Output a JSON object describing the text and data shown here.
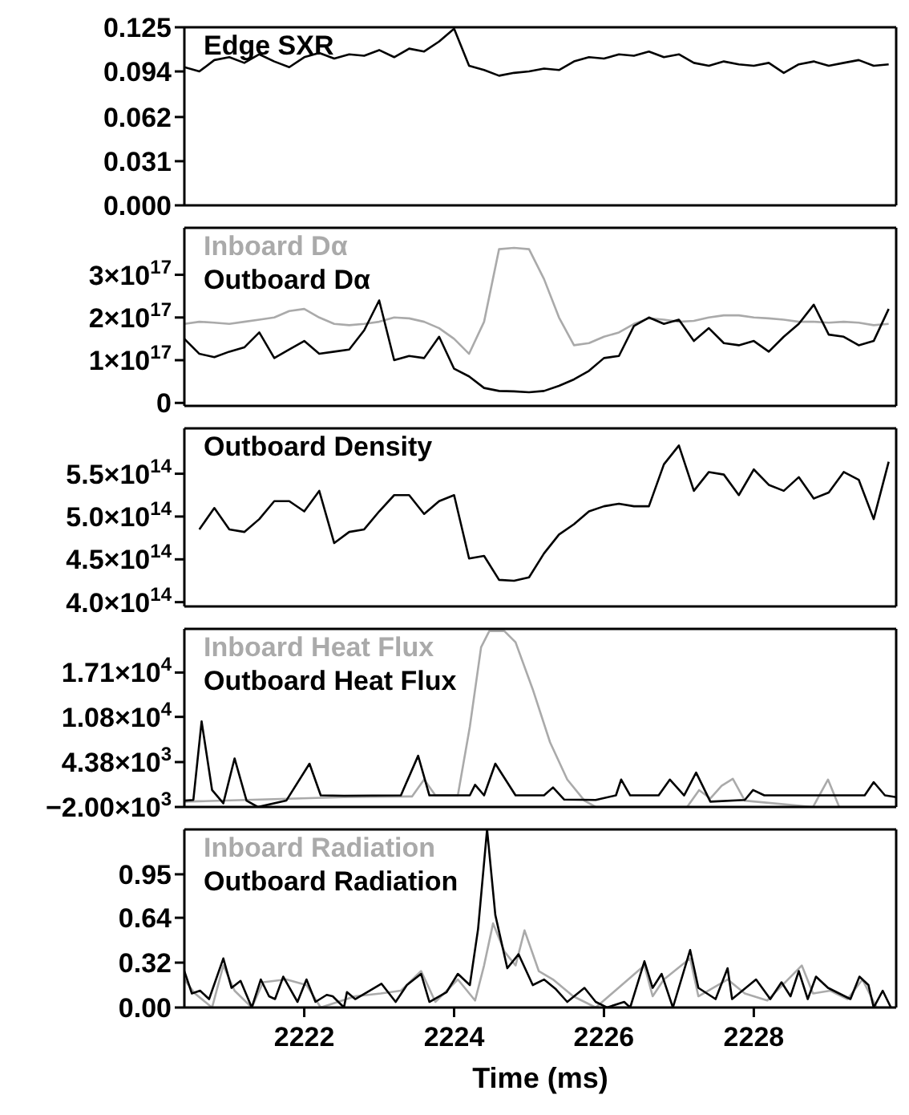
{
  "chart_data": [
    {
      "type": "line",
      "legend": "top left",
      "tick_labels": "y",
      "xlim": [
        2220.4,
        2229.9
      ],
      "xticks": [
        2222,
        2224,
        2226,
        2228
      ],
      "ylim": [
        0,
        0.125
      ],
      "yticks": [
        {
          "value": 0,
          "label": "0.000"
        },
        0.031,
        0.062,
        0.094,
        0.125
      ],
      "x": [
        2220.4,
        2220.6,
        2220.8,
        2221.0,
        2221.2,
        2221.4,
        2221.6,
        2221.8,
        2222.0,
        2222.2,
        2222.4,
        2222.6,
        2222.8,
        2223.0,
        2223.2,
        2223.4,
        2223.6,
        2223.8,
        2224.0,
        2224.2,
        2224.4,
        2224.6,
        2224.8,
        2225.0,
        2225.2,
        2225.4,
        2225.6,
        2225.8,
        2226.0,
        2226.2,
        2226.4,
        2226.6,
        2226.8,
        2227.0,
        2227.2,
        2227.4,
        2227.6,
        2227.8,
        2228.0,
        2228.2,
        2228.4,
        2228.6,
        2228.8,
        2229.0,
        2229.2,
        2229.4,
        2229.6,
        2229.8
      ],
      "series": [
        {
          "name": "Edge SXR",
          "color": "#000000",
          "values": [
            0.097,
            0.094,
            0.102,
            0.104,
            0.1,
            0.106,
            0.101,
            0.097,
            0.104,
            0.107,
            0.103,
            0.106,
            0.105,
            0.109,
            0.104,
            0.11,
            0.108,
            0.115,
            0.124,
            0.098,
            0.095,
            0.091,
            0.093,
            0.094,
            0.096,
            0.095,
            0.101,
            0.104,
            0.103,
            0.106,
            0.105,
            0.108,
            0.104,
            0.106,
            0.1,
            0.098,
            0.101,
            0.099,
            0.098,
            0.1,
            0.093,
            0.099,
            0.101,
            0.098,
            0.1,
            0.102,
            0.098,
            0.099
          ]
        }
      ]
    },
    {
      "type": "line",
      "legend": "top left",
      "tick_labels": "y",
      "xlim": [
        2220.4,
        2229.9
      ],
      "xticks": [
        2222,
        2224,
        2226,
        2228
      ],
      "ylim": [
        -7000000000000000.0,
        4.1e+17
      ],
      "yticks": [
        {
          "value": 0,
          "label": "0"
        },
        {
          "value": 1e+17,
          "label": "1×10$^{17}$"
        },
        {
          "value": 2e+17,
          "label": "2×10$^{17}$"
        },
        {
          "value": 3e+17,
          "label": "3×10$^{17}$"
        }
      ],
      "x": [
        2220.4,
        2220.6,
        2220.8,
        2221.0,
        2221.2,
        2221.4,
        2221.6,
        2221.8,
        2222.0,
        2222.2,
        2222.4,
        2222.6,
        2222.8,
        2223.0,
        2223.2,
        2223.4,
        2223.6,
        2223.8,
        2224.0,
        2224.2,
        2224.4,
        2224.6,
        2224.8,
        2225.0,
        2225.2,
        2225.4,
        2225.6,
        2225.8,
        2226.0,
        2226.2,
        2226.4,
        2226.6,
        2226.8,
        2227.0,
        2227.2,
        2227.4,
        2227.6,
        2227.8,
        2228.0,
        2228.2,
        2228.4,
        2228.6,
        2228.8,
        2229.0,
        2229.2,
        2229.4,
        2229.6,
        2229.8
      ],
      "series": [
        {
          "name": "Inboard Dα",
          "color": "#aaaaaa",
          "values": [
            1.85e+17,
            1.9e+17,
            1.88e+17,
            1.85e+17,
            1.9e+17,
            1.95e+17,
            2e+17,
            2.15e+17,
            2.2e+17,
            2e+17,
            1.85e+17,
            1.82e+17,
            1.85e+17,
            1.9e+17,
            2e+17,
            1.98e+17,
            1.9e+17,
            1.75e+17,
            1.5e+17,
            1.15e+17,
            1.9e+17,
            3.6e+17,
            3.63e+17,
            3.6e+17,
            2.9e+17,
            2e+17,
            1.35e+17,
            1.4e+17,
            1.55e+17,
            1.65e+17,
            1.85e+17,
            1.98e+17,
            1.95e+17,
            1.9e+17,
            1.92e+17,
            2e+17,
            2.05e+17,
            2.05e+17,
            2e+17,
            1.98e+17,
            1.95e+17,
            1.9e+17,
            1.9e+17,
            1.88e+17,
            1.9e+17,
            1.88e+17,
            1.82e+17,
            1.85e+17
          ]
        },
        {
          "name": "Outboard Dα",
          "color": "#000000",
          "values": [
            1.5e+17,
            1.15e+17,
            1.07e+17,
            1.2e+17,
            1.3e+17,
            1.65e+17,
            1.05e+17,
            1.25e+17,
            1.45e+17,
            1.15e+17,
            1.2e+17,
            1.25e+17,
            1.7e+17,
            2.4e+17,
            1e+17,
            1.1e+17,
            1.05e+17,
            1.55e+17,
            8e+16,
            6.2e+16,
            3.5e+16,
            2.8e+16,
            2.7e+16,
            2.5e+16,
            2.8e+16,
            4e+16,
            5.5e+16,
            7.5e+16,
            1.05e+17,
            1.1e+17,
            1.8e+17,
            2e+17,
            1.85e+17,
            1.95e+17,
            1.45e+17,
            1.75e+17,
            1.4e+17,
            1.35e+17,
            1.45e+17,
            1.2e+17,
            1.55e+17,
            1.85e+17,
            2.3e+17,
            1.6e+17,
            1.55e+17,
            1.35e+17,
            1.45e+17,
            2.2e+17
          ]
        }
      ]
    },
    {
      "type": "line",
      "legend": "top left",
      "tick_labels": "y",
      "xlim": [
        2220.4,
        2229.9
      ],
      "xticks": [
        2222,
        2224,
        2226,
        2228
      ],
      "ylim": [
        395000000000000.0,
        603000000000000.0
      ],
      "yticks": [
        {
          "value": 400000000000000.0,
          "label": "4.0×10$^{14}$"
        },
        {
          "value": 450000000000000.0,
          "label": "4.5×10$^{14}$"
        },
        {
          "value": 500000000000000.0,
          "label": "5.0×10$^{14}$"
        },
        {
          "value": 550000000000000.0,
          "label": "5.5×10$^{14}$"
        }
      ],
      "x": [
        2220.6,
        2220.8,
        2221.0,
        2221.2,
        2221.4,
        2221.6,
        2221.8,
        2222.0,
        2222.2,
        2222.4,
        2222.6,
        2222.8,
        2223.0,
        2223.2,
        2223.4,
        2223.6,
        2223.8,
        2224.0,
        2224.2,
        2224.4,
        2224.6,
        2224.8,
        2225.0,
        2225.2,
        2225.4,
        2225.6,
        2225.8,
        2226.0,
        2226.2,
        2226.4,
        2226.6,
        2226.8,
        2227.0,
        2227.2,
        2227.4,
        2227.6,
        2227.8,
        2228.0,
        2228.2,
        2228.4,
        2228.6,
        2228.8,
        2229.0,
        2229.2,
        2229.4,
        2229.6,
        2229.8
      ],
      "series": [
        {
          "name": "Outboard Density",
          "color": "#000000",
          "values": [
            485000000000000.0,
            510000000000000.0,
            485000000000000.0,
            482000000000000.0,
            497000000000000.0,
            518000000000000.0,
            518000000000000.0,
            506000000000000.0,
            530000000000000.0,
            469000000000000.0,
            482000000000000.0,
            485000000000000.0,
            506000000000000.0,
            525000000000000.0,
            525000000000000.0,
            503000000000000.0,
            518000000000000.0,
            525000000000000.0,
            451000000000000.0,
            454000000000000.0,
            426000000000000.0,
            425000000000000.0,
            429000000000000.0,
            457000000000000.0,
            479000000000000.0,
            491000000000000.0,
            506000000000000.0,
            512000000000000.0,
            515000000000000.0,
            512000000000000.0,
            512000000000000.0,
            561000000000000.0,
            583000000000000.0,
            530000000000000.0,
            552000000000000.0,
            549000000000000.0,
            525000000000000.0,
            555000000000000.0,
            537000000000000.0,
            530000000000000.0,
            546000000000000.0,
            521000000000000.0,
            528000000000000.0,
            552000000000000.0,
            543000000000000.0,
            497000000000000.0,
            564000000000000.0
          ]
        }
      ]
    },
    {
      "type": "line",
      "legend": "top left",
      "tick_labels": "y",
      "xlim": [
        2220.4,
        2229.9
      ],
      "xticks": [
        2222,
        2224,
        2226,
        2228
      ],
      "ylim": [
        -2000,
        23300
      ],
      "yticks": [
        {
          "value": -2000,
          "label": "−2.00×10$^{3}$"
        },
        {
          "value": 4380,
          "label": "4.38×10$^{3}$"
        },
        {
          "value": 10800,
          "label": "1.08×10$^{4}$"
        },
        {
          "value": 17100,
          "label": "1.71×10$^{4}$"
        }
      ],
      "series": [
        {
          "name": "Inboard Heat Flux",
          "color": "#aaaaaa",
          "x": [
            2220.4,
            2222.53,
            2223.44,
            2223.6,
            2223.75,
            2224.05,
            2224.21,
            2224.36,
            2224.47,
            2224.67,
            2224.82,
            2225.05,
            2225.28,
            2225.51,
            2225.74,
            2225.89,
            2227.11,
            2227.27,
            2227.42,
            2227.57,
            2227.72,
            2227.88,
            2228.79,
            2228.99,
            2229.14,
            2229.9
          ],
          "values": [
            -1250,
            -600,
            -500,
            1900,
            -350,
            -350,
            9400,
            20700,
            23000,
            23000,
            21400,
            14700,
            7200,
            1900,
            -1100,
            -2000,
            -2000,
            400,
            -800,
            1000,
            2000,
            -1100,
            -2000,
            1900,
            -2000,
            -2000
          ]
        },
        {
          "name": "Outboard Heat Flux",
          "color": "#000000",
          "x": [
            2220.4,
            2220.52,
            2220.63,
            2220.77,
            2220.92,
            2221.07,
            2221.23,
            2221.38,
            2221.76,
            2222.07,
            2222.22,
            2222.53,
            2223.29,
            2223.52,
            2223.67,
            2224.21,
            2224.28,
            2224.4,
            2224.55,
            2224.82,
            2225.2,
            2225.32,
            2225.47,
            2225.89,
            2226.16,
            2226.23,
            2226.35,
            2226.73,
            2226.88,
            2227.07,
            2227.23,
            2227.42,
            2227.88,
            2227.99,
            2228.14,
            2229.48,
            2229.6,
            2229.75,
            2229.9
          ],
          "values": [
            -1100,
            -1000,
            10160,
            400,
            -1475,
            4900,
            -1100,
            -2000,
            -1100,
            4150,
            -350,
            -400,
            -350,
            5280,
            -350,
            -350,
            1150,
            -350,
            4150,
            -350,
            -350,
            780,
            -950,
            -1000,
            -350,
            1900,
            -350,
            -350,
            1900,
            -350,
            2880,
            -1250,
            -1000,
            400,
            -350,
            -350,
            1530,
            -350,
            -600
          ]
        }
      ]
    },
    {
      "type": "line",
      "legend": "top left",
      "xlabel": "Time (ms)",
      "xlim": [
        2220.4,
        2229.9
      ],
      "xticks": [
        2222,
        2224,
        2226,
        2228
      ],
      "ylim": [
        0,
        1.27
      ],
      "yticks": [
        {
          "value": 0,
          "label": "0.00"
        },
        {
          "value": 0.32,
          "label": "0.32"
        },
        {
          "value": 0.64,
          "label": "0.64"
        },
        {
          "value": 0.95,
          "label": "0.95"
        }
      ],
      "series": [
        {
          "name": "Inboard Radiation",
          "color": "#aaaaaa",
          "x": [
            2220.4,
            2220.54,
            2220.77,
            2220.92,
            2221.07,
            2221.3,
            2221.45,
            2221.76,
            2222.03,
            2222.22,
            2222.68,
            2223.02,
            2223.29,
            2223.56,
            2223.75,
            2224.05,
            2224.28,
            2224.4,
            2224.52,
            2224.67,
            2224.82,
            2224.94,
            2225.13,
            2225.32,
            2225.59,
            2225.89,
            2226.54,
            2226.65,
            2226.8,
            2227.15,
            2227.26,
            2227.65,
            2227.88,
            2228.18,
            2228.64,
            2228.79,
            2229.02,
            2229.25,
            2229.45,
            2229.64,
            2229.9
          ],
          "values": [
            0.2,
            0.1,
            0.0,
            0.3,
            0.12,
            0.0,
            0.18,
            0.2,
            0.16,
            0.0,
            0.08,
            0.1,
            0.12,
            0.26,
            0.04,
            0.2,
            0.05,
            0.3,
            0.6,
            0.4,
            0.3,
            0.55,
            0.26,
            0.2,
            0.08,
            0.0,
            0.3,
            0.08,
            0.2,
            0.35,
            0.08,
            0.2,
            0.1,
            0.05,
            0.3,
            0.1,
            0.12,
            0.06,
            0.2,
            0.0,
            0.0
          ]
        },
        {
          "name": "Outboard Radiation",
          "color": "#000000",
          "x": [
            2220.4,
            2220.5,
            2220.61,
            2220.73,
            2220.92,
            2221.03,
            2221.15,
            2221.3,
            2221.42,
            2221.53,
            2221.61,
            2221.72,
            2221.91,
            2222.03,
            2222.15,
            2222.3,
            2222.38,
            2222.53,
            2222.57,
            2222.68,
            2222.84,
            2223.03,
            2223.22,
            2223.37,
            2223.56,
            2223.67,
            2223.9,
            2224.05,
            2224.21,
            2224.32,
            2224.44,
            2224.55,
            2224.71,
            2224.86,
            2225.05,
            2225.2,
            2225.36,
            2225.51,
            2225.74,
            2225.89,
            2226.04,
            2226.27,
            2226.35,
            2226.54,
            2226.65,
            2226.77,
            2226.92,
            2227.15,
            2227.26,
            2227.49,
            2227.65,
            2227.71,
            2228.03,
            2228.22,
            2228.37,
            2228.49,
            2228.6,
            2228.72,
            2228.83,
            2228.99,
            2229.14,
            2229.29,
            2229.41,
            2229.53,
            2229.6,
            2229.72,
            2229.83
          ],
          "values": [
            0.26,
            0.1,
            0.12,
            0.06,
            0.35,
            0.14,
            0.19,
            0.0,
            0.2,
            0.08,
            0.06,
            0.22,
            0.04,
            0.2,
            0.04,
            0.09,
            0.08,
            0.0,
            0.11,
            0.06,
            0.11,
            0.17,
            0.04,
            0.16,
            0.24,
            0.04,
            0.11,
            0.24,
            0.16,
            0.56,
            1.27,
            0.66,
            0.28,
            0.38,
            0.16,
            0.2,
            0.13,
            0.04,
            0.14,
            0.04,
            0.0,
            0.04,
            0.0,
            0.33,
            0.14,
            0.24,
            0.0,
            0.41,
            0.14,
            0.06,
            0.28,
            0.06,
            0.2,
            0.06,
            0.18,
            0.08,
            0.26,
            0.06,
            0.22,
            0.14,
            0.1,
            0.06,
            0.22,
            0.16,
            0.0,
            0.12,
            0.0
          ]
        }
      ]
    }
  ]
}
